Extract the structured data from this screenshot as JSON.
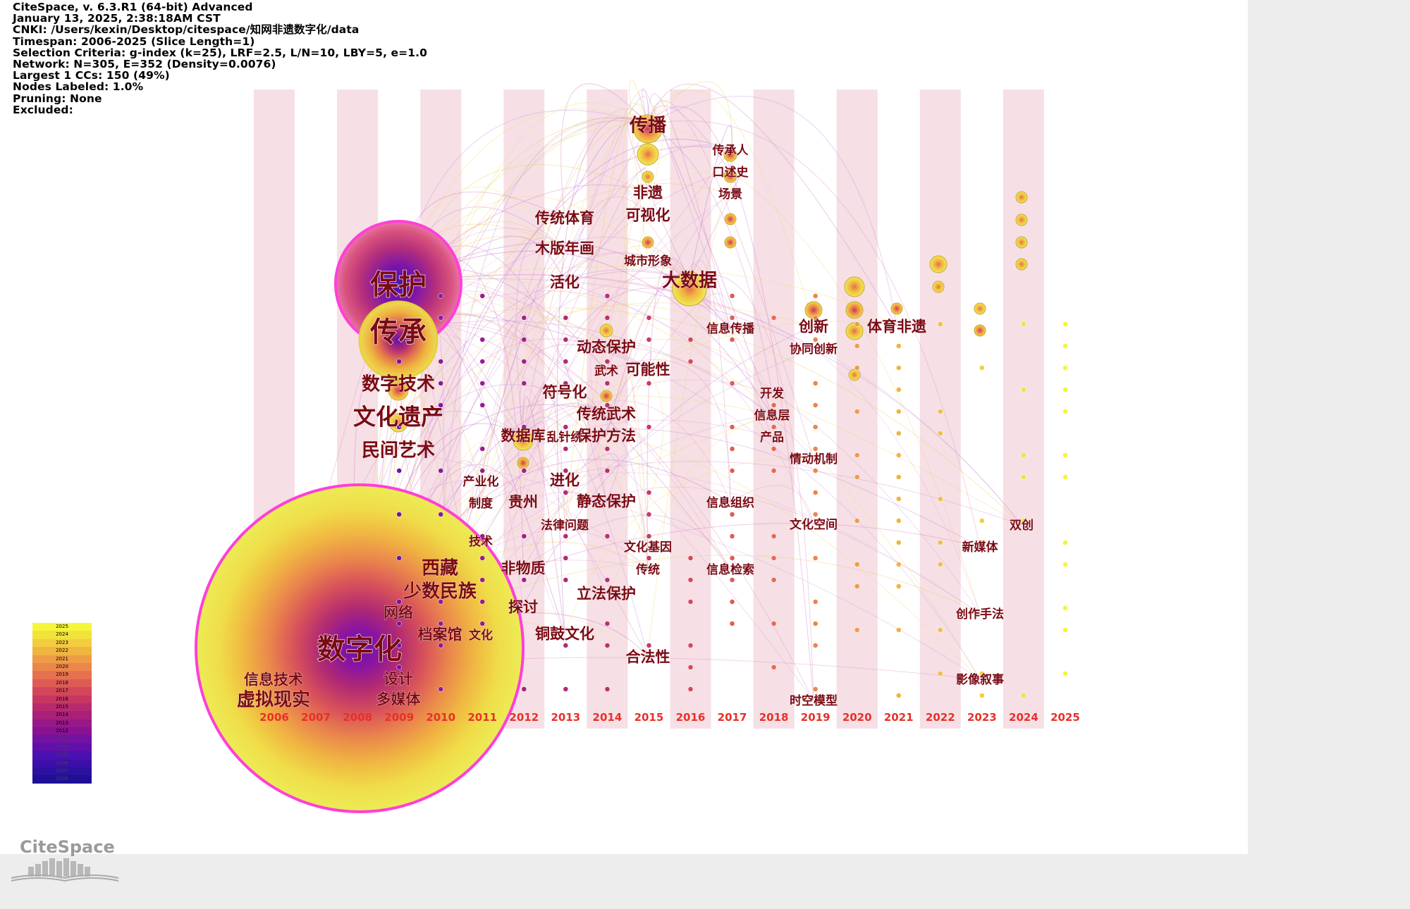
{
  "info": {
    "lines": [
      "CiteSpace, v. 6.3.R1 (64-bit) Advanced",
      "January 13, 2025, 2:38:18AM CST",
      "CNKI: /Users/kexin/Desktop/citespace/知网非遗数字化/data",
      "Timespan: 2006-2025 (Slice Length=1)",
      "Selection Criteria: g-index (k=25), LRF=2.5, L/N=10, LBY=5, e=1.0",
      "Network: N=305, E=352 (Density=0.0076)",
      "Largest 1 CCs: 150 (49%)",
      "Nodes Labeled: 1.0%",
      "Pruning: None",
      "Excluded:"
    ]
  },
  "timeline": {
    "years": [
      "2006",
      "2007",
      "2008",
      "2009",
      "2010",
      "2011",
      "2012",
      "2013",
      "2014",
      "2015",
      "2016",
      "2017",
      "2018",
      "2019",
      "2020",
      "2021",
      "2022",
      "2023",
      "2024",
      "2025"
    ],
    "stripe_color": "#f6dfe5",
    "year_label_color": "#e8302a"
  },
  "keywords": [
    {
      "label": "数字化",
      "year": "2009",
      "size": "xl",
      "halo": "pink"
    },
    {
      "label": "保护",
      "year": "2009",
      "size": "xl",
      "halo": "pink"
    },
    {
      "label": "传承",
      "year": "2009",
      "size": "xl",
      "halo": "yellow"
    },
    {
      "label": "数字技术",
      "year": "2009",
      "size": "m"
    },
    {
      "label": "文化遗产",
      "year": "2009",
      "size": "l"
    },
    {
      "label": "民间艺术",
      "year": "2009",
      "size": "m"
    },
    {
      "label": "西藏",
      "year": "2010",
      "size": "m"
    },
    {
      "label": "少数民族",
      "year": "2010",
      "size": "m"
    },
    {
      "label": "网络",
      "year": "2009",
      "size": "s"
    },
    {
      "label": "档案馆",
      "year": "2010",
      "size": "s"
    },
    {
      "label": "文化",
      "year": "2011",
      "size": "xs"
    },
    {
      "label": "信息技术",
      "year": "2007",
      "size": "s"
    },
    {
      "label": "设计",
      "year": "2009",
      "size": "s"
    },
    {
      "label": "虚拟现实",
      "year": "2007",
      "size": "m"
    },
    {
      "label": "多媒体",
      "year": "2009",
      "size": "s"
    },
    {
      "label": "传播",
      "year": "2015",
      "size": "m"
    },
    {
      "label": "传承人",
      "year": "2017",
      "size": "xs"
    },
    {
      "label": "口述史",
      "year": "2017",
      "size": "xs"
    },
    {
      "label": "场景",
      "year": "2017",
      "size": "xs"
    },
    {
      "label": "非遗",
      "year": "2015",
      "size": "s"
    },
    {
      "label": "可视化",
      "year": "2015",
      "size": "s"
    },
    {
      "label": "传统体育",
      "year": "2013",
      "size": "s"
    },
    {
      "label": "木版年画",
      "year": "2013",
      "size": "s"
    },
    {
      "label": "城市形象",
      "year": "2015",
      "size": "xs"
    },
    {
      "label": "大数据",
      "year": "2016",
      "size": "m"
    },
    {
      "label": "活化",
      "year": "2013",
      "size": "s"
    },
    {
      "label": "信息传播",
      "year": "2017",
      "size": "xs"
    },
    {
      "label": "创新",
      "year": "2019",
      "size": "s"
    },
    {
      "label": "体育非遗",
      "year": "2021",
      "size": "s"
    },
    {
      "label": "协同创新",
      "year": "2019",
      "size": "xs"
    },
    {
      "label": "动态保护",
      "year": "2014",
      "size": "s"
    },
    {
      "label": "武术",
      "year": "2014",
      "size": "xs"
    },
    {
      "label": "可能性",
      "year": "2015",
      "size": "s"
    },
    {
      "label": "符号化",
      "year": "2013",
      "size": "s"
    },
    {
      "label": "开发",
      "year": "2018",
      "size": "xs"
    },
    {
      "label": "传统武术",
      "year": "2014",
      "size": "s"
    },
    {
      "label": "信息层",
      "year": "2018",
      "size": "xs"
    },
    {
      "label": "数据库",
      "year": "2012",
      "size": "s"
    },
    {
      "label": "乱针绣",
      "year": "2013",
      "size": "xs"
    },
    {
      "label": "保护方法",
      "year": "2014",
      "size": "s"
    },
    {
      "label": "产品",
      "year": "2018",
      "size": "xs"
    },
    {
      "label": "情动机制",
      "year": "2019",
      "size": "xs"
    },
    {
      "label": "产业化",
      "year": "2011",
      "size": "xs"
    },
    {
      "label": "进化",
      "year": "2013",
      "size": "s"
    },
    {
      "label": "制度",
      "year": "2011",
      "size": "xs"
    },
    {
      "label": "贵州",
      "year": "2012",
      "size": "s"
    },
    {
      "label": "静态保护",
      "year": "2014",
      "size": "s"
    },
    {
      "label": "信息组织",
      "year": "2017",
      "size": "xs"
    },
    {
      "label": "法律问题",
      "year": "2013",
      "size": "xs"
    },
    {
      "label": "文化空间",
      "year": "2019",
      "size": "xs"
    },
    {
      "label": "双创",
      "year": "2024",
      "size": "xs"
    },
    {
      "label": "技术",
      "year": "2011",
      "size": "xs"
    },
    {
      "label": "文化基因",
      "year": "2015",
      "size": "xs"
    },
    {
      "label": "新媒体",
      "year": "2023",
      "size": "xs"
    },
    {
      "label": "非物质",
      "year": "2012",
      "size": "s"
    },
    {
      "label": "传统",
      "year": "2015",
      "size": "xs"
    },
    {
      "label": "信息检索",
      "year": "2017",
      "size": "xs"
    },
    {
      "label": "立法保护",
      "year": "2014",
      "size": "s"
    },
    {
      "label": "探讨",
      "year": "2012",
      "size": "s"
    },
    {
      "label": "创作手法",
      "year": "2023",
      "size": "xs"
    },
    {
      "label": "铜鼓文化",
      "year": "2013",
      "size": "s"
    },
    {
      "label": "合法性",
      "year": "2015",
      "size": "s"
    },
    {
      "label": "影像叙事",
      "year": "2023",
      "size": "xs"
    },
    {
      "label": "时空模型",
      "year": "2019",
      "size": "xs"
    }
  ],
  "legend": {
    "years_top_to_bottom": [
      "2025",
      "2024",
      "2023",
      "2022",
      "2021",
      "2020",
      "2019",
      "2018",
      "2017",
      "2016",
      "2015",
      "2014",
      "2013",
      "2012",
      "2011",
      "2010",
      "2009",
      "2008",
      "2007",
      "2006"
    ],
    "colors_top_to_bottom": [
      "#f4f63a",
      "#f2e23c",
      "#f2cd3f",
      "#f0b441",
      "#ee9c46",
      "#eb874b",
      "#e6714f",
      "#de5c55",
      "#d4475a",
      "#c73762",
      "#b82a6d",
      "#a82079",
      "#971886",
      "#861393",
      "#7311a0",
      "#6010aa",
      "#4b10b0",
      "#3a10a8",
      "#2c10a0",
      "#1e0f96"
    ]
  },
  "logo": {
    "text": "CiteSpace"
  }
}
